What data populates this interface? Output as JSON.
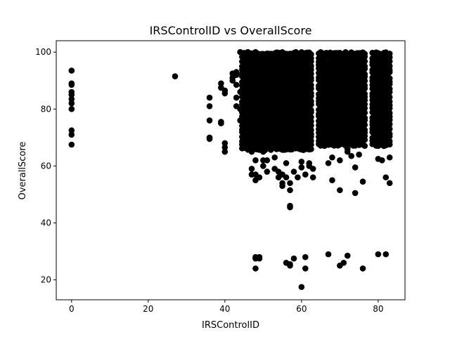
{
  "chart_data": {
    "type": "scatter",
    "title": "IRSControlID vs OverallScore",
    "xlabel": "IRSControlID",
    "ylabel": "OverallScore",
    "xlim": [
      -4,
      87
    ],
    "ylim": [
      13,
      104
    ],
    "xticks": [
      0,
      20,
      40,
      60,
      80
    ],
    "yticks": [
      20,
      40,
      60,
      80,
      100
    ],
    "grid": false,
    "marker_color": "#000000",
    "points": [
      [
        0,
        93.5
      ],
      [
        0,
        89
      ],
      [
        0,
        88.5
      ],
      [
        0,
        86
      ],
      [
        0,
        85
      ],
      [
        0,
        83.5
      ],
      [
        0,
        82
      ],
      [
        0,
        80
      ],
      [
        0,
        72.5
      ],
      [
        0,
        71
      ],
      [
        0,
        67.5
      ],
      [
        27,
        91.5
      ],
      [
        36,
        84
      ],
      [
        36,
        81
      ],
      [
        36,
        76
      ],
      [
        36,
        70
      ],
      [
        36,
        69.5
      ],
      [
        39,
        89
      ],
      [
        39,
        87.5
      ],
      [
        39,
        75.5
      ],
      [
        39,
        75
      ],
      [
        40,
        86.5
      ],
      [
        40,
        85.5
      ],
      [
        40,
        68
      ],
      [
        40,
        66.5
      ],
      [
        40,
        65
      ],
      [
        42,
        92.5
      ],
      [
        42,
        91
      ],
      [
        42,
        90
      ],
      [
        43,
        88.5
      ],
      [
        43,
        84
      ],
      [
        43,
        81
      ],
      [
        43,
        92
      ],
      [
        43,
        93
      ],
      [
        44,
        100
      ],
      [
        44,
        86
      ],
      [
        44,
        80
      ],
      [
        44,
        76
      ],
      [
        45,
        90
      ],
      [
        45,
        85
      ],
      [
        45,
        79
      ],
      [
        45,
        72
      ],
      [
        45,
        69
      ],
      [
        45,
        67
      ],
      [
        46,
        100
      ],
      [
        46,
        95
      ],
      [
        46,
        88
      ],
      [
        46,
        77
      ],
      [
        46,
        68
      ],
      [
        47,
        65
      ],
      [
        47,
        59
      ],
      [
        47,
        57
      ],
      [
        48,
        100
      ],
      [
        48,
        62
      ],
      [
        48,
        57
      ],
      [
        48,
        55
      ],
      [
        48,
        28
      ],
      [
        48,
        27.5
      ],
      [
        48,
        24
      ],
      [
        49,
        28
      ],
      [
        49,
        27.5
      ],
      [
        49,
        56
      ],
      [
        50,
        65
      ],
      [
        50,
        62
      ],
      [
        50,
        60
      ],
      [
        51,
        62
      ],
      [
        51,
        58
      ],
      [
        53,
        63
      ],
      [
        53,
        59
      ],
      [
        54,
        58
      ],
      [
        54,
        56
      ],
      [
        55,
        57
      ],
      [
        55,
        54
      ],
      [
        55,
        53
      ],
      [
        56,
        61
      ],
      [
        56,
        56
      ],
      [
        56,
        26
      ],
      [
        57,
        54
      ],
      [
        57,
        51.5
      ],
      [
        57,
        46
      ],
      [
        57,
        45.5
      ],
      [
        57,
        25.5
      ],
      [
        57,
        25
      ],
      [
        58,
        58
      ],
      [
        58,
        27.5
      ],
      [
        59,
        56
      ],
      [
        60,
        61.5
      ],
      [
        60,
        59.5
      ],
      [
        60,
        17.5
      ],
      [
        61,
        57
      ],
      [
        61,
        28
      ],
      [
        61,
        24
      ],
      [
        62,
        61
      ],
      [
        62,
        60
      ],
      [
        62,
        66
      ],
      [
        63,
        59
      ],
      [
        63,
        56
      ],
      [
        65,
        70
      ],
      [
        65,
        69
      ],
      [
        67,
        61
      ],
      [
        67,
        29
      ],
      [
        68,
        63
      ],
      [
        68,
        55
      ],
      [
        70,
        62
      ],
      [
        70,
        51.5
      ],
      [
        70,
        25
      ],
      [
        71,
        26
      ],
      [
        72,
        66
      ],
      [
        72,
        65
      ],
      [
        72,
        28.5
      ],
      [
        73,
        63.5
      ],
      [
        74,
        59.5
      ],
      [
        74,
        50.5
      ],
      [
        75,
        64
      ],
      [
        76,
        54.5
      ],
      [
        76,
        24
      ],
      [
        80,
        62.5
      ],
      [
        80,
        29
      ],
      [
        81,
        62
      ],
      [
        82,
        56
      ],
      [
        82,
        29
      ],
      [
        83,
        63
      ],
      [
        83,
        54
      ]
    ],
    "dense_regions": [
      {
        "x_range": [
          44.5,
          62.5
        ],
        "y_range": [
          65,
          100
        ]
      },
      {
        "x_range": [
          64.5,
          76.5
        ],
        "y_range": [
          67,
          100
        ]
      },
      {
        "x_range": [
          78.5,
          83
        ],
        "y_range": [
          67,
          100
        ]
      }
    ]
  }
}
